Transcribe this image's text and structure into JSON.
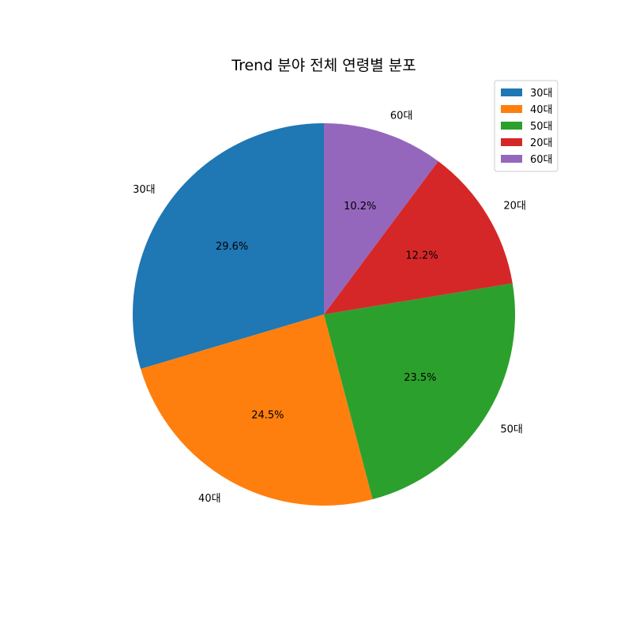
{
  "chart_data": {
    "type": "pie",
    "title": "Trend 분야 전체 연령별 분포",
    "categories": [
      "30대",
      "40대",
      "50대",
      "20대",
      "60대"
    ],
    "values": [
      29.6,
      24.5,
      23.5,
      12.2,
      10.2
    ],
    "percent_labels": [
      "29.6%",
      "24.5%",
      "23.5%",
      "12.2%",
      "10.2%"
    ],
    "colors": [
      "#1f77b4",
      "#ff7f0e",
      "#2ca02c",
      "#d62728",
      "#9467bd"
    ],
    "start_angle": 90,
    "direction": "counterclockwise",
    "legend": {
      "placement": "top-right",
      "entries": [
        "30대",
        "40대",
        "50대",
        "20대",
        "60대"
      ]
    }
  }
}
